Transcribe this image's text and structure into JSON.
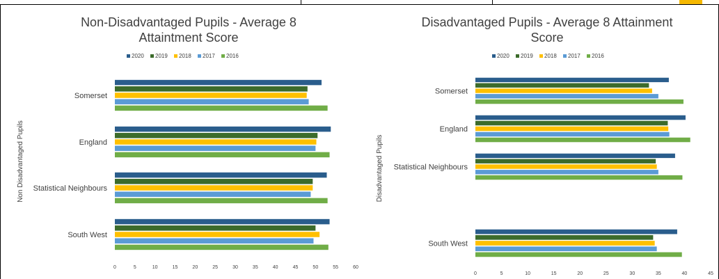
{
  "colors": {
    "2020": "#2a5d8c",
    "2019": "#3c6b2b",
    "2018": "#ffc000",
    "2017": "#5b9bd5",
    "2016": "#70ad47"
  },
  "chart_data": [
    {
      "type": "bar",
      "orientation": "horizontal",
      "title_lines": [
        "Non-Disadvantaged Pupils - Average 8",
        "Attaintment Score"
      ],
      "ylabel": "Non Disadvantaged Pupils",
      "xlabel": "",
      "xlim": [
        0,
        60
      ],
      "xticks": [
        0,
        5,
        10,
        15,
        20,
        25,
        30,
        35,
        40,
        45,
        50,
        55,
        60
      ],
      "legend_position": "top",
      "categories": [
        "Somerset",
        "England",
        "Statistical Neighbours",
        "South West"
      ],
      "series": [
        {
          "name": "2020",
          "values": [
            51.5,
            53.8,
            52.8,
            53.5
          ]
        },
        {
          "name": "2019",
          "values": [
            48.0,
            50.5,
            49.3,
            50.0
          ]
        },
        {
          "name": "2018",
          "values": [
            47.8,
            50.2,
            49.3,
            51.0
          ]
        },
        {
          "name": "2017",
          "values": [
            48.3,
            50.0,
            48.8,
            49.5
          ]
        },
        {
          "name": "2016",
          "values": [
            53.0,
            53.5,
            53.0,
            53.2
          ]
        }
      ]
    },
    {
      "type": "bar",
      "orientation": "horizontal",
      "title_lines": [
        "Disadvantaged Pupils - Average 8 Attainment",
        "Score"
      ],
      "ylabel": "Disadvantaged Pupils",
      "xlabel": "",
      "xlim": [
        0,
        45
      ],
      "xticks": [
        0,
        5,
        10,
        15,
        20,
        25,
        30,
        35,
        40,
        45
      ],
      "legend_position": "top",
      "categories": [
        "Somerset",
        "England",
        "Statistical Neighbours",
        "South West"
      ],
      "series": [
        {
          "name": "2020",
          "values": [
            37.0,
            40.2,
            38.2,
            38.6
          ]
        },
        {
          "name": "2019",
          "values": [
            33.2,
            36.8,
            34.5,
            34.0
          ]
        },
        {
          "name": "2018",
          "values": [
            33.8,
            36.9,
            34.7,
            34.3
          ]
        },
        {
          "name": "2017",
          "values": [
            35.0,
            37.1,
            35.0,
            34.7
          ]
        },
        {
          "name": "2016",
          "values": [
            39.8,
            41.1,
            39.6,
            39.5
          ]
        }
      ]
    }
  ]
}
